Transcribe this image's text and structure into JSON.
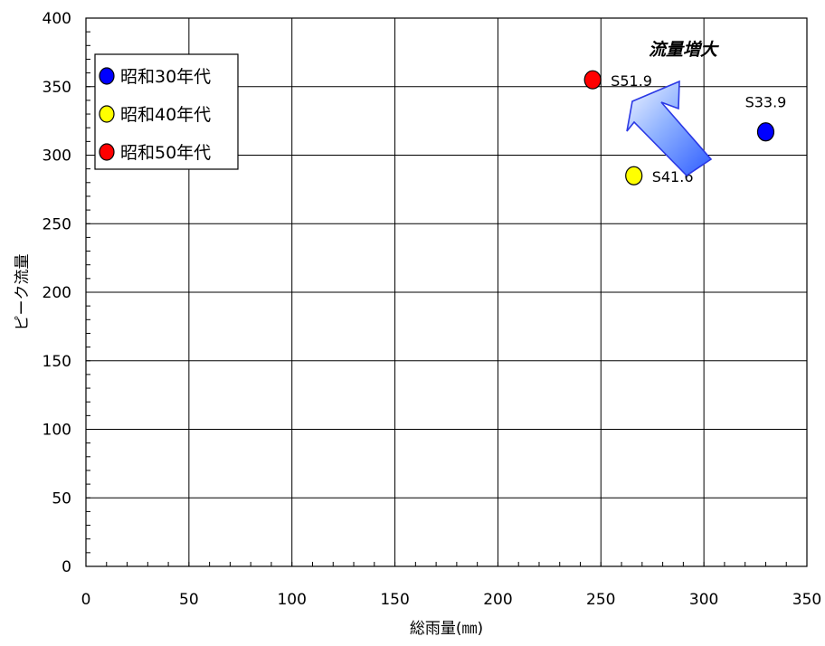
{
  "chart_data": {
    "type": "scatter",
    "xlabel": "総雨量(㎜)",
    "ylabel": "ピーク流量",
    "xlim": [
      0,
      350
    ],
    "ylim": [
      0,
      400
    ],
    "x_ticks": [
      0,
      50,
      100,
      150,
      200,
      250,
      300,
      350
    ],
    "y_ticks": [
      0,
      50,
      100,
      150,
      200,
      250,
      300,
      350,
      400
    ],
    "grid": true,
    "legend_position": "top-left",
    "series": [
      {
        "name": "昭和30年代",
        "color": "#0000ff",
        "points": [
          {
            "x": 330,
            "y": 317,
            "label": "S33.9"
          }
        ]
      },
      {
        "name": "昭和40年代",
        "color": "#ffff00",
        "points": [
          {
            "x": 266,
            "y": 285,
            "label": "S41.6"
          }
        ]
      },
      {
        "name": "昭和50年代",
        "color": "#ff0000",
        "points": [
          {
            "x": 246,
            "y": 355,
            "label": "S51.9"
          }
        ]
      }
    ],
    "annotation": {
      "text": "流量増大",
      "color": "#1f32ff",
      "arrow_icon": "arrow-up-left-icon"
    }
  }
}
